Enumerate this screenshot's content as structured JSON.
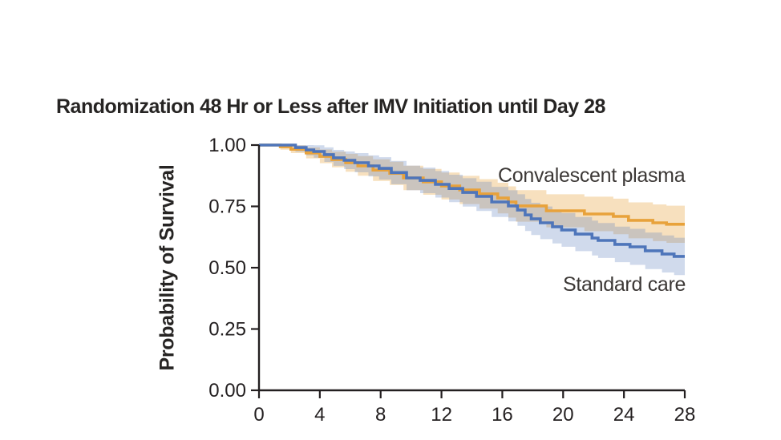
{
  "page": {
    "background": "#ffffff"
  },
  "chart_data": {
    "type": "line",
    "variant": "kaplan-meier-step-with-confidence-bands",
    "title": "Randomization 48 Hr or Less after IMV Initiation until Day 28",
    "ylabel": "Probability of Survival",
    "xlabel": "",
    "xlim": [
      0,
      28
    ],
    "ylim": [
      0.0,
      1.0
    ],
    "x_ticks": [
      "0",
      "4",
      "8",
      "12",
      "16",
      "20",
      "24",
      "28"
    ],
    "y_ticks": [
      {
        "label": "1.00",
        "value": 1.0
      },
      {
        "label": "0.75",
        "value": 0.75
      },
      {
        "label": "0.50",
        "value": 0.5
      },
      {
        "label": "0.25",
        "value": 0.25
      },
      {
        "label": "0.00",
        "value": 0.0
      }
    ],
    "grid": false,
    "legend_position": "inline-labels",
    "axis_color": "#231f20",
    "ci_halfwidth_by_day": [
      [
        0,
        0.004
      ],
      [
        2,
        0.015
      ],
      [
        4,
        0.028
      ],
      [
        6,
        0.038
      ],
      [
        8,
        0.046
      ],
      [
        10,
        0.051
      ],
      [
        12,
        0.055
      ],
      [
        14,
        0.059
      ],
      [
        16,
        0.063
      ],
      [
        18,
        0.066
      ],
      [
        20,
        0.069
      ],
      [
        22,
        0.071
      ],
      [
        24,
        0.073
      ],
      [
        26,
        0.075
      ],
      [
        28,
        0.077
      ]
    ],
    "series": [
      {
        "name": "Convalescent plasma",
        "color": "#e8a23b",
        "band_color": "rgba(232,162,59,0.33)",
        "steps_day_probability": [
          [
            0,
            1.0
          ],
          [
            1.4,
            0.993
          ],
          [
            2.1,
            0.983
          ],
          [
            3.1,
            0.968
          ],
          [
            4.0,
            0.954
          ],
          [
            4.8,
            0.941
          ],
          [
            5.7,
            0.928
          ],
          [
            6.5,
            0.915
          ],
          [
            7.5,
            0.898
          ],
          [
            8.6,
            0.885
          ],
          [
            9.5,
            0.866
          ],
          [
            10.8,
            0.85
          ],
          [
            12.0,
            0.833
          ],
          [
            13.2,
            0.817
          ],
          [
            14.5,
            0.801
          ],
          [
            15.7,
            0.784
          ],
          [
            16.4,
            0.768
          ],
          [
            16.9,
            0.752
          ],
          [
            18.9,
            0.732
          ],
          [
            21.4,
            0.719
          ],
          [
            23.3,
            0.709
          ],
          [
            24.3,
            0.693
          ],
          [
            25.9,
            0.683
          ],
          [
            26.8,
            0.677
          ]
        ]
      },
      {
        "name": "Standard care",
        "color": "#4e75ba",
        "band_color": "rgba(100,133,193,0.30)",
        "steps_day_probability": [
          [
            0,
            1.0
          ],
          [
            2.4,
            0.99
          ],
          [
            3.1,
            0.98
          ],
          [
            3.6,
            0.974
          ],
          [
            4.3,
            0.961
          ],
          [
            4.9,
            0.948
          ],
          [
            5.6,
            0.938
          ],
          [
            6.3,
            0.928
          ],
          [
            7.2,
            0.915
          ],
          [
            7.9,
            0.905
          ],
          [
            8.7,
            0.888
          ],
          [
            9.7,
            0.866
          ],
          [
            10.6,
            0.856
          ],
          [
            11.6,
            0.84
          ],
          [
            12.5,
            0.823
          ],
          [
            13.4,
            0.807
          ],
          [
            14.3,
            0.791
          ],
          [
            15.3,
            0.768
          ],
          [
            16.4,
            0.752
          ],
          [
            17.0,
            0.735
          ],
          [
            17.5,
            0.715
          ],
          [
            17.9,
            0.699
          ],
          [
            18.5,
            0.683
          ],
          [
            19.3,
            0.667
          ],
          [
            19.9,
            0.654
          ],
          [
            20.8,
            0.637
          ],
          [
            21.9,
            0.621
          ],
          [
            22.3,
            0.611
          ],
          [
            23.4,
            0.595
          ],
          [
            24.4,
            0.585
          ],
          [
            25.4,
            0.569
          ],
          [
            26.5,
            0.556
          ],
          [
            27.3,
            0.546
          ]
        ]
      }
    ]
  }
}
